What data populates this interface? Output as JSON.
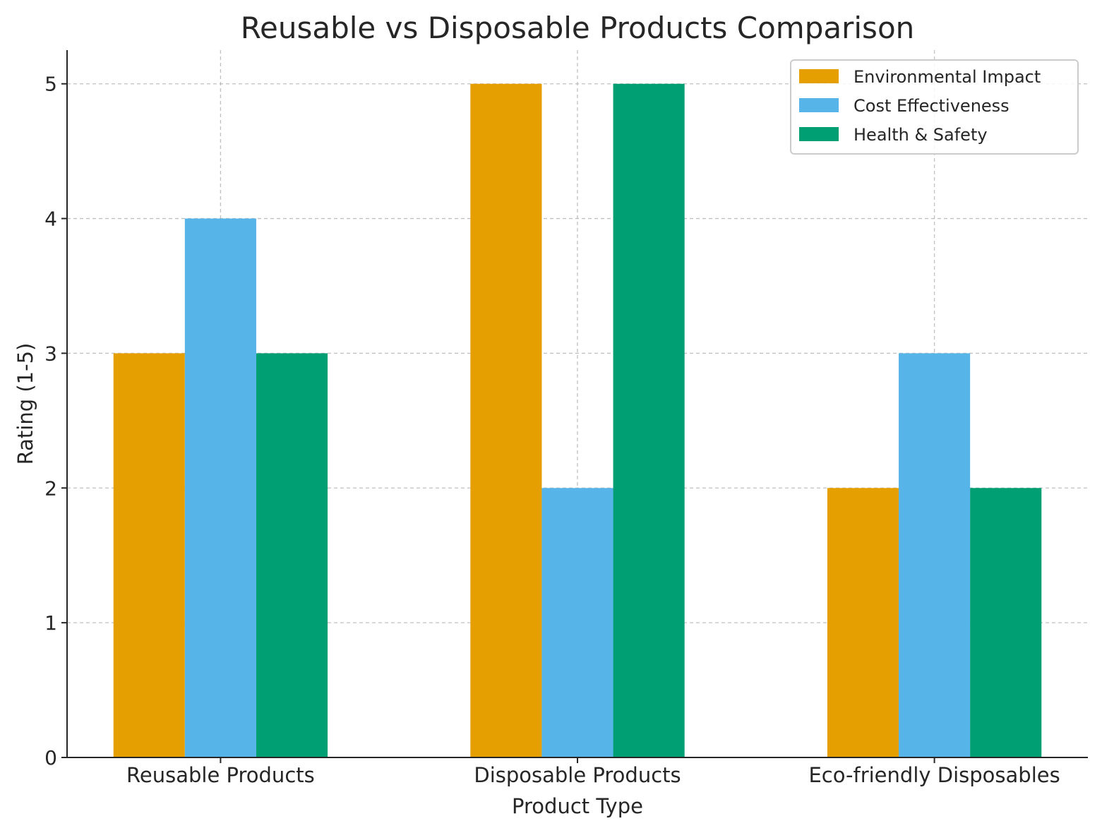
{
  "chart_data": {
    "type": "bar",
    "title": "Reusable vs Disposable Products Comparison",
    "xlabel": "Product Type",
    "ylabel": "Rating (1-5)",
    "categories": [
      "Reusable Products",
      "Disposable Products",
      "Eco-friendly Disposables"
    ],
    "series": [
      {
        "name": "Environmental Impact",
        "values": [
          3,
          5,
          2
        ],
        "color": "#E69F00"
      },
      {
        "name": "Cost Effectiveness",
        "values": [
          4,
          2,
          3
        ],
        "color": "#56B4E9"
      },
      {
        "name": "Health & Safety",
        "values": [
          3,
          5,
          2
        ],
        "color": "#009E73"
      }
    ],
    "ylim": [
      0,
      5.25
    ],
    "yticks": [
      "0",
      "1",
      "2",
      "3",
      "4",
      "5"
    ],
    "grid": true,
    "legend_position": "top-right"
  }
}
